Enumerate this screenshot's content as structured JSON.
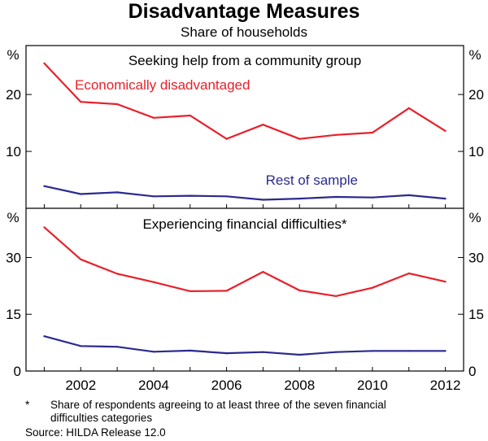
{
  "title": "Disadvantage Measures",
  "subtitle": "Share of households",
  "footnote_marker": "*",
  "footnote": "Share of respondents agreeing to at least three of the seven financial difficulties categories",
  "source": "Source: HILDA Release 12.0",
  "colors": {
    "red": "#e8202a",
    "blue": "#2b2a8f",
    "axis": "#000000"
  },
  "chart_data": [
    {
      "type": "line",
      "title": "Seeking help from a community group",
      "ylabel": "%",
      "ylim": [
        0,
        28.6
      ],
      "yticks": [
        10,
        20
      ],
      "xlim": [
        2000.5,
        2012.5
      ],
      "x": [
        2001,
        2002,
        2003,
        2004,
        2005,
        2006,
        2007,
        2008,
        2009,
        2010,
        2011,
        2012
      ],
      "series": [
        {
          "name": "Economically disadvantaged",
          "color": "#e8202a",
          "values": [
            25.5,
            18.7,
            18.3,
            15.9,
            16.3,
            12.2,
            14.7,
            12.2,
            12.9,
            13.3,
            17.6,
            13.6
          ]
        },
        {
          "name": "Rest of sample",
          "color": "#2b2a8f",
          "values": [
            3.9,
            2.5,
            2.8,
            2.1,
            2.2,
            2.1,
            1.5,
            1.7,
            2.0,
            1.9,
            2.3,
            1.7
          ]
        }
      ]
    },
    {
      "type": "line",
      "title": "Experiencing financial difficulties*",
      "ylabel": "%",
      "ylim": [
        0,
        43
      ],
      "yticks": [
        0,
        15,
        30
      ],
      "xlim": [
        2000.5,
        2012.5
      ],
      "x": [
        2001,
        2002,
        2003,
        2004,
        2005,
        2006,
        2007,
        2008,
        2009,
        2010,
        2011,
        2012
      ],
      "xticks": [
        "2002",
        "2004",
        "2006",
        "2008",
        "2010",
        "2012"
      ],
      "series": [
        {
          "name": "Economically disadvantaged",
          "color": "#e8202a",
          "values": [
            38.0,
            29.5,
            25.7,
            23.5,
            21.1,
            21.2,
            26.2,
            21.3,
            19.8,
            22.0,
            25.8,
            23.6
          ]
        },
        {
          "name": "Rest of sample",
          "color": "#2b2a8f",
          "values": [
            9.2,
            6.6,
            6.4,
            5.1,
            5.4,
            4.7,
            5.0,
            4.3,
            5.0,
            5.3,
            5.3,
            5.3
          ]
        }
      ]
    }
  ]
}
